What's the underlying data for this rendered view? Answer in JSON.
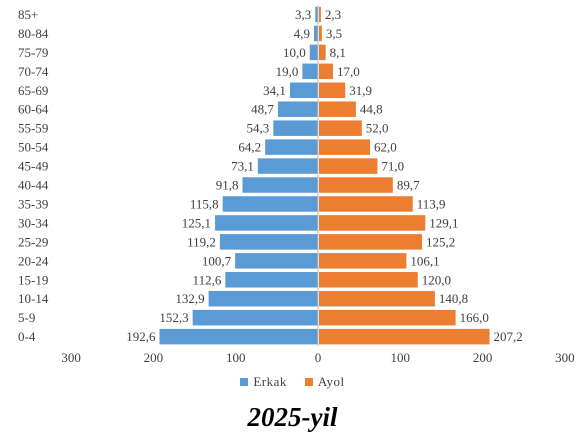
{
  "chart_data": {
    "type": "bar",
    "orientation": "horizontal-population-pyramid",
    "title": "",
    "caption": "2025-yil",
    "categories": [
      "0-4",
      "5-9",
      "10-14",
      "15-19",
      "20-24",
      "25-29",
      "30-34",
      "35-39",
      "40-44",
      "45-49",
      "50-54",
      "55-59",
      "60-64",
      "65-69",
      "70-74",
      "75-79",
      "80-84",
      "85+"
    ],
    "series": [
      {
        "name": "Erkak",
        "color": "#5b9bd5",
        "values": [
          192.6,
          152.3,
          132.9,
          112.6,
          100.7,
          119.2,
          125.1,
          115.8,
          91.8,
          73.1,
          64.2,
          54.3,
          48.7,
          34.1,
          19.0,
          10.0,
          4.9,
          3.3
        ],
        "labels": [
          "192,6",
          "152,3",
          "132,9",
          "112,6",
          "100,7",
          "119,2",
          "125,1",
          "115,8",
          "91,8",
          "73,1",
          "64,2",
          "54,3",
          "48,7",
          "34,1",
          "19,0",
          "10,0",
          "4,9",
          "3,3"
        ]
      },
      {
        "name": "Ayol",
        "color": "#ed7d31",
        "values": [
          207.2,
          166.0,
          140.8,
          120.0,
          106.1,
          125.2,
          129.1,
          113.9,
          89.7,
          71.0,
          62.0,
          52.0,
          44.8,
          31.9,
          17.0,
          8.1,
          3.5,
          2.3
        ],
        "labels": [
          "207,2",
          "166,0",
          "140,8",
          "120,0",
          "106,1",
          "125,2",
          "129,1",
          "113,9",
          "89,7",
          "71,0",
          "62,0",
          "52,0",
          "44,8",
          "31,9",
          "17,0",
          "8,1",
          "3,5",
          "2,3"
        ]
      }
    ],
    "xticks": [
      "300",
      "200",
      "100",
      "0",
      "100",
      "200",
      "300"
    ],
    "xlim": [
      -300,
      300
    ],
    "legend": "bottom-center",
    "grid": false
  }
}
